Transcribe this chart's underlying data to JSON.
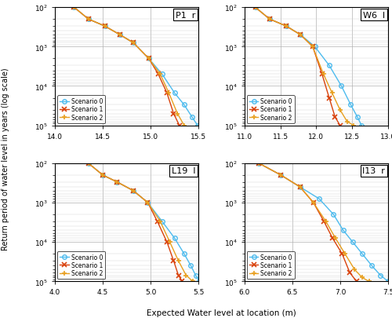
{
  "subplots": [
    {
      "title": "P1  r",
      "xlim": [
        14.0,
        15.5
      ],
      "xticks": [
        14.0,
        14.5,
        15.0,
        15.5
      ],
      "scenario0_x": [
        14.2,
        14.35,
        14.52,
        14.68,
        14.82,
        14.98,
        15.12,
        15.25,
        15.35,
        15.43,
        15.49
      ],
      "scenario0_y": [
        100,
        200,
        300,
        500,
        800,
        2000,
        5000,
        15000,
        30000,
        60000,
        100000
      ],
      "scenario1_x": [
        14.2,
        14.35,
        14.52,
        14.68,
        14.82,
        14.98,
        15.08,
        15.17,
        15.24,
        15.3
      ],
      "scenario1_y": [
        100,
        200,
        300,
        500,
        800,
        2000,
        5000,
        15000,
        50000,
        100000
      ],
      "scenario2_x": [
        14.2,
        14.35,
        14.52,
        14.68,
        14.82,
        14.98,
        15.1,
        15.19,
        15.28,
        15.35
      ],
      "scenario2_y": [
        100,
        200,
        300,
        500,
        800,
        2000,
        5000,
        15000,
        50000,
        100000
      ]
    },
    {
      "title": "W6  l",
      "xlim": [
        11.0,
        13.0
      ],
      "xticks": [
        11.0,
        11.5,
        12.0,
        12.5,
        13.0
      ],
      "scenario0_x": [
        11.15,
        11.35,
        11.58,
        11.78,
        11.98,
        12.18,
        12.35,
        12.48,
        12.57,
        12.63
      ],
      "scenario0_y": [
        100,
        200,
        300,
        500,
        1000,
        3000,
        10000,
        30000,
        60000,
        100000
      ],
      "scenario1_x": [
        11.15,
        11.35,
        11.58,
        11.78,
        11.95,
        12.08,
        12.18,
        12.26,
        12.33
      ],
      "scenario1_y": [
        100,
        200,
        300,
        500,
        1000,
        5000,
        20000,
        60000,
        100000
      ],
      "scenario2_x": [
        11.15,
        11.35,
        11.58,
        11.78,
        11.95,
        12.1,
        12.22,
        12.33,
        12.43,
        12.52
      ],
      "scenario2_y": [
        100,
        200,
        300,
        500,
        1000,
        5000,
        15000,
        40000,
        80000,
        100000
      ]
    },
    {
      "title": "L19  l",
      "xlim": [
        4.0,
        5.5
      ],
      "xticks": [
        4.0,
        4.5,
        5.0,
        5.5
      ],
      "scenario0_x": [
        4.35,
        4.5,
        4.65,
        4.82,
        4.97,
        5.12,
        5.25,
        5.35,
        5.42,
        5.47,
        5.51
      ],
      "scenario0_y": [
        100,
        200,
        300,
        500,
        1000,
        3000,
        8000,
        20000,
        40000,
        70000,
        100000
      ],
      "scenario1_x": [
        4.35,
        4.5,
        4.65,
        4.82,
        4.97,
        5.07,
        5.17,
        5.24,
        5.29,
        5.33
      ],
      "scenario1_y": [
        100,
        200,
        300,
        500,
        1000,
        3000,
        10000,
        30000,
        70000,
        100000
      ],
      "scenario2_x": [
        4.35,
        4.5,
        4.65,
        4.82,
        4.97,
        5.1,
        5.2,
        5.29,
        5.37,
        5.44
      ],
      "scenario2_y": [
        100,
        200,
        300,
        500,
        1000,
        3000,
        10000,
        30000,
        70000,
        100000
      ]
    },
    {
      "title": "I13  r",
      "xlim": [
        6.0,
        7.5
      ],
      "xticks": [
        6.0,
        6.5,
        7.0,
        7.5
      ],
      "scenario0_x": [
        6.15,
        6.38,
        6.58,
        6.78,
        6.93,
        7.03,
        7.13,
        7.23,
        7.33,
        7.42,
        7.5
      ],
      "scenario0_y": [
        100,
        200,
        400,
        800,
        2000,
        5000,
        10000,
        20000,
        40000,
        70000,
        100000
      ],
      "scenario1_x": [
        6.15,
        6.38,
        6.58,
        6.72,
        6.83,
        6.92,
        7.02,
        7.1,
        7.17
      ],
      "scenario1_y": [
        100,
        200,
        400,
        1000,
        3000,
        8000,
        20000,
        60000,
        100000
      ],
      "scenario2_x": [
        6.15,
        6.38,
        6.58,
        6.72,
        6.85,
        6.95,
        7.05,
        7.15,
        7.23,
        7.3
      ],
      "scenario2_y": [
        100,
        200,
        400,
        1000,
        3000,
        8000,
        20000,
        50000,
        80000,
        100000
      ]
    }
  ],
  "color_s0": "#4dbbee",
  "color_s1": "#d9410b",
  "color_s2": "#e8a020",
  "ylim_bottom": 100000,
  "ylim_top": 100,
  "yticks": [
    100,
    1000,
    10000,
    100000
  ],
  "ylabel": "Return period of water level in years (log scale)",
  "xlabel": "Expected Water level at location (m)",
  "legend_labels": [
    "Scenario 0",
    "Scenario 1",
    "Scenario 2"
  ]
}
